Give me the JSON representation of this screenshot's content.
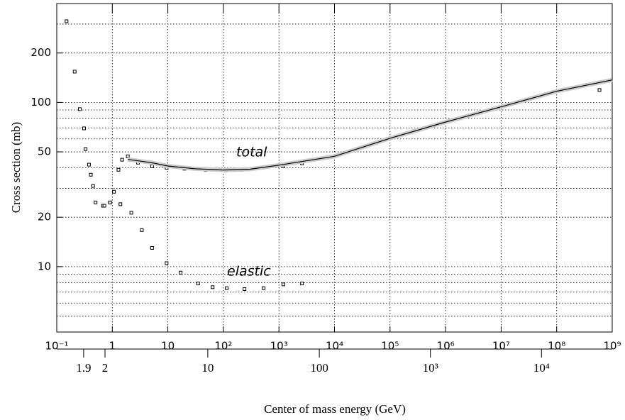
{
  "chart_data": {
    "type": "scatter",
    "x_axis_label": "Center of mass energy (GeV)",
    "y_axis_label": "Cross section (mb)",
    "xscale": "log",
    "yscale": "log",
    "grid": true,
    "xlim": [
      0.1,
      1000000000
    ],
    "xticks": [
      {
        "value": 0.1,
        "label": "10⁻¹"
      },
      1,
      10,
      {
        "value": 100,
        "label": "10²"
      },
      {
        "value": 1000,
        "label": "10³"
      },
      {
        "value": 10000,
        "label": "10⁴"
      },
      {
        "value": 100000,
        "label": "10⁵"
      },
      {
        "value": 1000000,
        "label": "10⁶"
      },
      {
        "value": 10000000,
        "label": "10⁷"
      },
      {
        "value": 100000000,
        "label": "10⁸"
      },
      {
        "value": 1000000000,
        "label": "10⁹"
      }
    ],
    "x2ticks": [
      1.9,
      2,
      10,
      100,
      {
        "value": 1000,
        "label": "10³"
      },
      {
        "value": 10000,
        "label": "10⁴"
      }
    ],
    "ylim": [
      4,
      400
    ],
    "yticks": [
      10,
      20,
      50,
      100,
      200
    ],
    "yminorticks": [
      5,
      6,
      7,
      8,
      9,
      30,
      40,
      60,
      70,
      80,
      90,
      300
    ],
    "series": [
      {
        "name": "total",
        "color": "#000000",
        "x": [
          0.15,
          0.21,
          0.26,
          0.31,
          0.33,
          0.38,
          0.41,
          0.45,
          0.5,
          0.68,
          0.91,
          1.07,
          1.29,
          1.5,
          1.9,
          2.9,
          5.2,
          9.5,
          20,
          48,
          110,
          210,
          500,
          1200,
          2600,
          590000000
        ],
        "values": [
          312,
          154,
          91,
          69.5,
          52,
          41.8,
          36.3,
          31,
          24.6,
          23.5,
          24.6,
          28.6,
          38.9,
          44.8,
          47,
          43,
          40.8,
          40,
          39.5,
          38.9,
          38.6,
          38.9,
          40,
          41,
          42.6,
          119
        ]
      },
      {
        "name": "elastic",
        "color": "#000000",
        "x": [
          0.72,
          0.91,
          1.4,
          2.2,
          3.4,
          5.2,
          9.5,
          17,
          35,
          64,
          115,
          240,
          530,
          1200,
          2600
        ],
        "values": [
          23.5,
          24.6,
          24,
          21.3,
          16.7,
          13,
          10.5,
          9.2,
          7.9,
          7.5,
          7.4,
          7.3,
          7.4,
          7.8,
          7.9
        ]
      },
      {
        "style": "line",
        "color": "#000000",
        "x": [
          1.9,
          5,
          10,
          30,
          100,
          300,
          1000,
          10000,
          100000,
          1000000,
          10000000,
          100000000,
          1000000000
        ],
        "values": [
          45,
          43,
          41,
          39.5,
          38.8,
          39.2,
          41.5,
          47,
          60.5,
          76,
          94,
          117,
          137
        ]
      }
    ]
  }
}
